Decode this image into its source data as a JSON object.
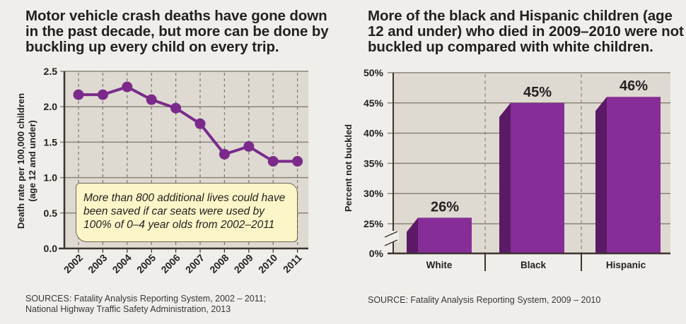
{
  "left": {
    "title": "Motor vehicle crash deaths have gone down in the past decade, but more can be done by buckling up every child on every trip.",
    "callout": "More than 800 additional lives could have been saved if car seats were used by 100% of 0–4 year olds from 2002–2011",
    "source_line1": "SOURCES: Fatality Analysis Reporting System, 2002 – 2011;",
    "source_line2": "National Highway Traffic Safety Administration, 2013"
  },
  "right": {
    "title": "More of the black and Hispanic children (age 12 and under) who died in 2009–2010 were not buckled up compared with white children.",
    "source": "SOURCE: Fatality Analysis Reporting System, 2009 – 2010"
  },
  "colors": {
    "line": "#7b2a8c",
    "marker": "#7b2a8c",
    "bar_front": "#862d97",
    "bar_side": "#5c1a66",
    "plot_bg": "#dedad1",
    "grid": "#8a8378",
    "axis": "#3d3330",
    "callout_bg": "#fcf5c8"
  },
  "chart_data": [
    {
      "type": "line",
      "title": "Motor vehicle crash deaths have gone down in the past decade, but more can be done by buckling up every child on every trip.",
      "xlabel": "",
      "ylabel": "Death rate per 100,000 children (age 12 and under)",
      "ylabel_line1": "Death rate per 100,000 children",
      "ylabel_line2": "(age 12 and under)",
      "x": [
        "2002",
        "2003",
        "2004",
        "2005",
        "2006",
        "2007",
        "2008",
        "2009",
        "2010",
        "2011"
      ],
      "series": [
        {
          "name": "Death rate",
          "values": [
            2.17,
            2.17,
            2.28,
            2.1,
            1.98,
            1.76,
            1.33,
            1.44,
            1.23,
            1.23
          ]
        }
      ],
      "ylim": [
        0,
        2.5
      ],
      "yticks": [
        0.0,
        0.5,
        1.0,
        1.5,
        2.0,
        2.5
      ],
      "ytick_labels": [
        "0.0",
        "0.5",
        "1.0",
        "1.5",
        "2.0",
        "2.5"
      ],
      "grid": true,
      "annotation": "More than 800 additional lives could have been saved if car seats were used by 100% of 0–4 year olds from 2002–2011"
    },
    {
      "type": "bar",
      "title": "More of the black and Hispanic children (age 12 and under) who died in 2009–2010 were not buckled up compared with white children.",
      "xlabel": "",
      "ylabel": "Percent not buckled",
      "categories": [
        "White",
        "Black",
        "Hispanic"
      ],
      "values": [
        26,
        45,
        46
      ],
      "value_labels": [
        "26%",
        "45%",
        "46%"
      ],
      "ylim": [
        0,
        50
      ],
      "axis_break": "between 0% and 25%",
      "yticks": [
        0,
        25,
        30,
        35,
        40,
        45,
        50
      ],
      "ytick_labels": [
        "0%",
        "25%",
        "30%",
        "35%",
        "40%",
        "45%",
        "50%"
      ],
      "grid": true
    }
  ]
}
